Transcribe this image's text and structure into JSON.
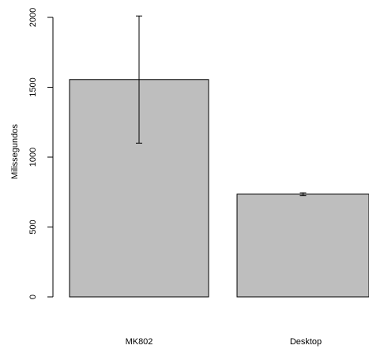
{
  "chart_data": {
    "type": "bar",
    "categories": [
      "MK802",
      "Desktop"
    ],
    "values": [
      1555,
      735
    ],
    "error_low": [
      1100,
      725
    ],
    "error_high": [
      2010,
      745
    ],
    "ylabel": "Milissegundos",
    "xlabel": "",
    "title": "",
    "ylim": [
      0,
      2000
    ],
    "yticks": [
      0,
      500,
      1000,
      1500,
      2000
    ],
    "grid": false,
    "bar_color": "#bebebe",
    "bar_border_color": "#000000",
    "error_bar_color": "#000000"
  }
}
